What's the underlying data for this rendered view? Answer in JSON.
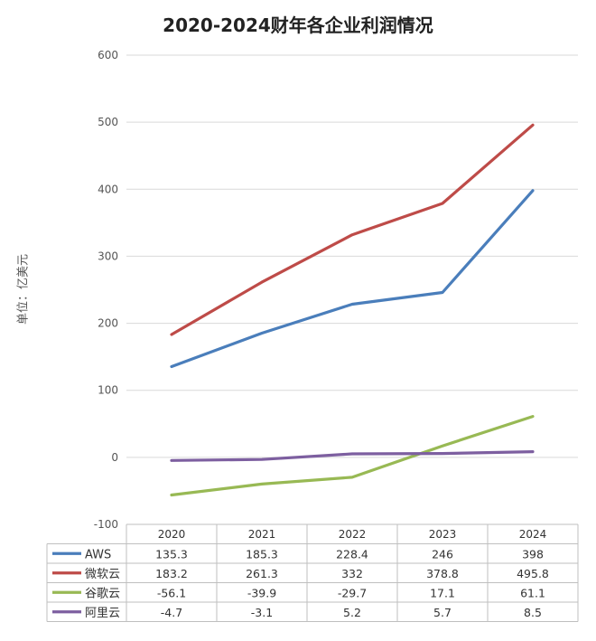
{
  "chart_data": {
    "type": "line",
    "title": "2020-2024财年各企业利润情况",
    "ylabel": "单位：亿美元",
    "xlabel": "",
    "ylim": [
      -100,
      600
    ],
    "yticks": [
      -100,
      0,
      100,
      200,
      300,
      400,
      500,
      600
    ],
    "grid": true,
    "legend": "data-table",
    "categories": [
      "2020",
      "2021",
      "2022",
      "2023",
      "2024"
    ],
    "series": [
      {
        "name": "AWS",
        "color": "#4a7ebb",
        "values": [
          135.3,
          185.3,
          228.4,
          246,
          398
        ],
        "labels": [
          "135.3",
          "185.3",
          "228.4",
          "246",
          "398"
        ]
      },
      {
        "name": "微软云",
        "color": "#be4b48",
        "values": [
          183.2,
          261.3,
          332,
          378.8,
          495.8
        ],
        "labels": [
          "183.2",
          "261.3",
          "332",
          "378.8",
          "495.8"
        ]
      },
      {
        "name": "谷歌云",
        "color": "#98b954",
        "values": [
          -56.1,
          -39.9,
          -29.7,
          17.1,
          61.1
        ],
        "labels": [
          "-56.1",
          "-39.9",
          "-29.7",
          "17.1",
          "61.1"
        ]
      },
      {
        "name": "阿里云",
        "color": "#7d5fa0",
        "values": [
          -4.7,
          -3.1,
          5.2,
          5.7,
          8.5
        ],
        "labels": [
          "-4.7",
          "-3.1",
          "5.2",
          "5.7",
          "8.5"
        ]
      }
    ]
  }
}
